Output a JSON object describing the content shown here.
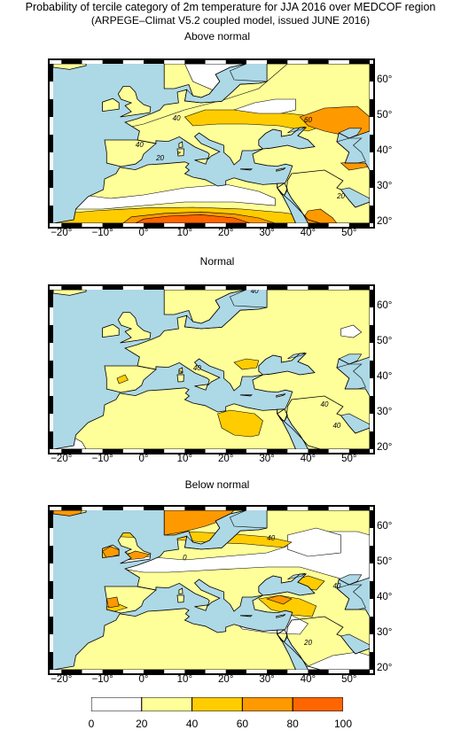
{
  "header": {
    "title_line1": "Probability of tercile category of 2m temperature for JJA 2016 over MEDCOF region",
    "title_line2": "(ARPEGE–Climat V5.2 coupled model, issued JUNE  2016)"
  },
  "axes": {
    "lon_ticks": [
      "−20°",
      "−10°",
      "0°",
      "10°",
      "20°",
      "30°",
      "40°",
      "50°"
    ],
    "lat_ticks": [
      "60°",
      "50°",
      "40°",
      "30°",
      "20°"
    ],
    "lon_values": [
      -20,
      -10,
      0,
      10,
      20,
      30,
      40,
      50
    ],
    "lat_values": [
      60,
      50,
      40,
      30,
      20
    ]
  },
  "panels": [
    {
      "title": "Above normal",
      "contour_labels": [
        "40",
        "60",
        "40",
        "20",
        "20"
      ]
    },
    {
      "title": "Normal",
      "contour_labels": [
        "40",
        "40",
        "40",
        "40"
      ]
    },
    {
      "title": "Below normal",
      "contour_labels": [
        "40",
        "0",
        "20",
        "40"
      ]
    }
  ],
  "colors": {
    "sea": "#add8e6",
    "bins": [
      "#ffffff",
      "#ffff99",
      "#ffcc00",
      "#ff9900",
      "#ff6600"
    ]
  },
  "legend": {
    "ticks": [
      "0",
      "20",
      "40",
      "60",
      "80",
      "100"
    ]
  }
}
